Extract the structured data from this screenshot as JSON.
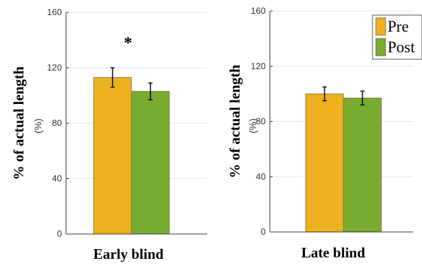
{
  "chart_data": [
    {
      "type": "bar",
      "xlabel": "Early blind",
      "ylabel": "% of actual length",
      "yunit": "(%)",
      "ylim": [
        0,
        160
      ],
      "yticks": [
        0,
        40,
        80,
        120,
        160
      ],
      "grid": true,
      "series": [
        {
          "name": "Pre",
          "value": 113,
          "error": 7,
          "color": "#EDB120"
        },
        {
          "name": "Post",
          "value": 103,
          "error": 6,
          "color": "#77AC30"
        }
      ],
      "annotation": "*"
    },
    {
      "type": "bar",
      "xlabel": "Late blind",
      "ylabel": "% of actual length",
      "yunit": "(%)",
      "ylim": [
        0,
        160
      ],
      "yticks": [
        0,
        40,
        80,
        120,
        160
      ],
      "grid": true,
      "legend_position": "top-right",
      "series": [
        {
          "name": "Pre",
          "value": 100,
          "error": 5,
          "color": "#EDB120"
        },
        {
          "name": "Post",
          "value": 97,
          "error": 5,
          "color": "#77AC30"
        }
      ]
    }
  ]
}
